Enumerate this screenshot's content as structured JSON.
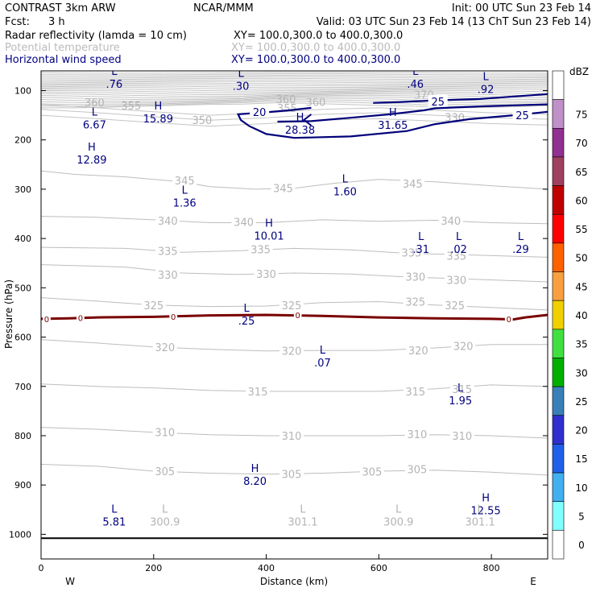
{
  "header": {
    "line1_left": "CONTRAST   3km ARW",
    "line1_mid": "NCAR/MMM",
    "line1_right": "Init: 00 UTC Sun 23 Feb 14",
    "fcst_label": "Fcst:",
    "fcst_value": "3 h",
    "valid": "Valid: 03 UTC Sun 23 Feb 14 (13 ChT Sun 23 Feb 14)",
    "fields": [
      {
        "label": "Radar reflectivity (lamda = 10 cm)",
        "xy": "XY= 100.0,300.0 to 400.0,300.0",
        "color": "#000000"
      },
      {
        "label": "Potential temperature",
        "xy": "XY= 100.0,300.0 to 400.0,300.0",
        "color": "#bbbbbb"
      },
      {
        "label": "Horizontal wind speed",
        "xy": "XY= 100.0,300.0 to 400.0,300.0",
        "color": "#000080"
      }
    ]
  },
  "chart_data": {
    "type": "contour",
    "xlabel": "Distance (km)",
    "ylabel": "Pressure (hPa)",
    "xlim": [
      0,
      900
    ],
    "ylim": [
      1050,
      60
    ],
    "x_ticks": [
      0,
      200,
      400,
      600,
      800
    ],
    "y_ticks": [
      100,
      200,
      300,
      400,
      500,
      600,
      700,
      800,
      900,
      1000
    ],
    "x_end_labels": {
      "left": "W",
      "right": "E"
    },
    "colorbar": {
      "unit": "dBZ",
      "levels": [
        0,
        5,
        10,
        15,
        20,
        25,
        30,
        35,
        40,
        45,
        50,
        55,
        60,
        65,
        70,
        75
      ],
      "colors": [
        "#ffffff",
        "#80ffff",
        "#40b0f0",
        "#2060e8",
        "#3030d0",
        "#3a80b8",
        "#00b000",
        "#40e040",
        "#f0d000",
        "#f8a040",
        "#ff6000",
        "#ff0000",
        "#c00000",
        "#a04060",
        "#903090",
        "#c090c8",
        "#ffffff"
      ]
    },
    "theta_contours": [
      {
        "value": 345,
        "label": "345",
        "points": [
          [
            0,
            263
          ],
          [
            60,
            270
          ],
          [
            150,
            275
          ],
          [
            250,
            285
          ],
          [
            300,
            295
          ],
          [
            380,
            300
          ],
          [
            450,
            298
          ],
          [
            520,
            288
          ],
          [
            600,
            280
          ],
          [
            700,
            285
          ],
          [
            800,
            293
          ],
          [
            900,
            300
          ]
        ],
        "label_positions": [
          [
            255,
            282
          ],
          [
            430,
            298
          ],
          [
            660,
            289
          ]
        ]
      },
      {
        "value": 340,
        "label": "340",
        "points": [
          [
            0,
            355
          ],
          [
            100,
            357
          ],
          [
            200,
            362
          ],
          [
            300,
            368
          ],
          [
            400,
            368
          ],
          [
            500,
            362
          ],
          [
            600,
            365
          ],
          [
            700,
            363
          ],
          [
            800,
            368
          ],
          [
            900,
            370
          ]
        ],
        "label_positions": [
          [
            225,
            364
          ],
          [
            360,
            366
          ],
          [
            728,
            364
          ]
        ]
      },
      {
        "value": 335,
        "label": "335",
        "points": [
          [
            0,
            418
          ],
          [
            150,
            420
          ],
          [
            250,
            428
          ],
          [
            350,
            425
          ],
          [
            450,
            420
          ],
          [
            550,
            423
          ],
          [
            650,
            430
          ],
          [
            750,
            433
          ],
          [
            900,
            438
          ]
        ],
        "label_positions": [
          [
            225,
            425
          ],
          [
            390,
            422
          ],
          [
            658,
            428
          ],
          [
            738,
            435
          ]
        ]
      },
      {
        "value": 330,
        "label": "330",
        "points": [
          [
            0,
            453
          ],
          [
            150,
            458
          ],
          [
            250,
            470
          ],
          [
            350,
            473
          ],
          [
            450,
            470
          ],
          [
            550,
            472
          ],
          [
            650,
            478
          ],
          [
            750,
            482
          ],
          [
            900,
            488
          ]
        ],
        "label_positions": [
          [
            225,
            473
          ],
          [
            400,
            472
          ],
          [
            665,
            477
          ],
          [
            738,
            484
          ]
        ]
      },
      {
        "value": 325,
        "label": "325",
        "points": [
          [
            0,
            520
          ],
          [
            100,
            527
          ],
          [
            200,
            535
          ],
          [
            300,
            538
          ],
          [
            400,
            537
          ],
          [
            500,
            530
          ],
          [
            600,
            528
          ],
          [
            700,
            535
          ],
          [
            800,
            540
          ],
          [
            900,
            545
          ]
        ],
        "label_positions": [
          [
            200,
            535
          ],
          [
            445,
            535
          ],
          [
            665,
            528
          ],
          [
            735,
            535
          ]
        ]
      },
      {
        "value": 320,
        "label": "320",
        "points": [
          [
            0,
            605
          ],
          [
            100,
            612
          ],
          [
            200,
            620
          ],
          [
            300,
            625
          ],
          [
            400,
            628
          ],
          [
            500,
            627
          ],
          [
            600,
            627
          ],
          [
            700,
            622
          ],
          [
            800,
            615
          ],
          [
            900,
            615
          ]
        ],
        "label_positions": [
          [
            220,
            620
          ],
          [
            445,
            628
          ],
          [
            670,
            627
          ],
          [
            750,
            618
          ]
        ]
      },
      {
        "value": 315,
        "label": "315",
        "points": [
          [
            0,
            695
          ],
          [
            100,
            700
          ],
          [
            200,
            703
          ],
          [
            300,
            708
          ],
          [
            400,
            710
          ],
          [
            500,
            710
          ],
          [
            600,
            710
          ],
          [
            700,
            705
          ],
          [
            800,
            697
          ],
          [
            900,
            700
          ]
        ],
        "label_positions": [
          [
            385,
            710
          ],
          [
            665,
            710
          ],
          [
            748,
            705
          ]
        ]
      },
      {
        "value": 310,
        "label": "310",
        "points": [
          [
            0,
            783
          ],
          [
            100,
            787
          ],
          [
            200,
            793
          ],
          [
            300,
            798
          ],
          [
            400,
            800
          ],
          [
            500,
            800
          ],
          [
            600,
            800
          ],
          [
            700,
            798
          ],
          [
            800,
            800
          ],
          [
            900,
            805
          ]
        ],
        "label_positions": [
          [
            220,
            793
          ],
          [
            445,
            800
          ],
          [
            668,
            797
          ],
          [
            748,
            800
          ]
        ]
      },
      {
        "value": 305,
        "label": "305",
        "points": [
          [
            0,
            858
          ],
          [
            100,
            862
          ],
          [
            200,
            872
          ],
          [
            300,
            876
          ],
          [
            400,
            878
          ],
          [
            500,
            876
          ],
          [
            600,
            872
          ],
          [
            700,
            870
          ],
          [
            800,
            874
          ],
          [
            900,
            880
          ]
        ],
        "label_positions": [
          [
            220,
            872
          ],
          [
            445,
            878
          ],
          [
            588,
            873
          ],
          [
            668,
            868
          ]
        ]
      }
    ],
    "theta_labels_crowded": [
      {
        "text": "360",
        "x": 95,
        "p": 124
      },
      {
        "text": "355",
        "x": 160,
        "p": 130
      },
      {
        "text": "350",
        "x": 286,
        "p": 160
      },
      {
        "text": "355",
        "x": 437,
        "p": 135
      },
      {
        "text": "360",
        "x": 435,
        "p": 117
      },
      {
        "text": "360",
        "x": 488,
        "p": 123
      },
      {
        "text": "370",
        "x": 680,
        "p": 108
      },
      {
        "text": "330",
        "x": 735,
        "p": 154
      }
    ],
    "zero_dbz_contour": {
      "label": "0",
      "points": [
        [
          0,
          563
        ],
        [
          50,
          562
        ],
        [
          100,
          560
        ],
        [
          200,
          559
        ],
        [
          300,
          556
        ],
        [
          400,
          555
        ],
        [
          500,
          557
        ],
        [
          600,
          560
        ],
        [
          700,
          562
        ],
        [
          800,
          563
        ],
        [
          840,
          564
        ],
        [
          860,
          560
        ],
        [
          900,
          555
        ]
      ],
      "label_positions": [
        [
          10,
          563
        ],
        [
          70,
          561
        ],
        [
          235,
          558
        ],
        [
          456,
          555
        ],
        [
          831,
          563
        ]
      ]
    },
    "wind_contours": [
      {
        "value": 20,
        "label": "20",
        "points": [
          [
            480,
            135
          ],
          [
            440,
            140
          ],
          [
            400,
            144
          ],
          [
            350,
            148
          ],
          [
            355,
            160
          ],
          [
            370,
            172
          ],
          [
            400,
            188
          ],
          [
            450,
            196
          ],
          [
            550,
            193
          ],
          [
            650,
            182
          ],
          [
            700,
            168
          ],
          [
            760,
            158
          ],
          [
            840,
            150
          ],
          [
            900,
            143
          ]
        ],
        "label_positions": [
          [
            388,
            143
          ]
        ]
      },
      {
        "value": 25,
        "label": "25",
        "points": [
          [
            590,
            125
          ],
          [
            640,
            123
          ],
          [
            700,
            120
          ],
          [
            780,
            117
          ],
          [
            840,
            112
          ],
          [
            900,
            107
          ]
        ],
        "label_positions": [
          [
            705,
            122
          ]
        ]
      },
      {
        "value": 25,
        "label": "25",
        "points": [
          [
            420,
            163
          ],
          [
            480,
            162
          ],
          [
            550,
            155
          ],
          [
            620,
            148
          ],
          [
            680,
            140
          ],
          [
            700,
            136
          ],
          [
            720,
            135
          ],
          [
            780,
            132
          ],
          [
            840,
            130
          ],
          [
            900,
            128
          ]
        ],
        "label_positions": [
          [
            855,
            150
          ]
        ]
      }
    ],
    "extrema": [
      {
        "type": "L",
        "value": ".76",
        "x": 130,
        "p": 75
      },
      {
        "type": "L",
        "value": ".30",
        "x": 355,
        "p": 79
      },
      {
        "type": "L",
        "value": ".46",
        "x": 665,
        "p": 75
      },
      {
        "type": "L",
        "value": ".92",
        "x": 790,
        "p": 85
      },
      {
        "type": "H",
        "value": "15.89",
        "x": 208,
        "p": 145
      },
      {
        "type": "L",
        "value": "6.67",
        "x": 95,
        "p": 157
      },
      {
        "type": "H",
        "value": "28.38",
        "x": 460,
        "p": 168
      },
      {
        "type": "H",
        "value": "31.65",
        "x": 625,
        "p": 158
      },
      {
        "type": "H",
        "value": "12.89",
        "x": 90,
        "p": 228
      },
      {
        "type": "L",
        "value": "1.36",
        "x": 255,
        "p": 316
      },
      {
        "type": "L",
        "value": "1.60",
        "x": 540,
        "p": 293
      },
      {
        "type": "H",
        "value": "10.01",
        "x": 405,
        "p": 383
      },
      {
        "type": "L",
        "value": ".31",
        "x": 675,
        "p": 410
      },
      {
        "type": "L",
        "value": ".02",
        "x": 742,
        "p": 410
      },
      {
        "type": "L",
        "value": ".29",
        "x": 852,
        "p": 410
      },
      {
        "type": "L",
        "value": ".25",
        "x": 365,
        "p": 555
      },
      {
        "type": "L",
        "value": ".07",
        "x": 500,
        "p": 640
      },
      {
        "type": "L",
        "value": "1.95",
        "x": 745,
        "p": 717
      },
      {
        "type": "H",
        "value": "8.20",
        "x": 380,
        "p": 880
      },
      {
        "type": "L",
        "value": "5.81",
        "x": 130,
        "p": 963
      },
      {
        "type": "H",
        "value": "12.55",
        "x": 790,
        "p": 940
      }
    ],
    "theta_minima": [
      {
        "type": "L",
        "value": "300.9",
        "x": 220,
        "p": 963
      },
      {
        "type": "L",
        "value": "301.1",
        "x": 465,
        "p": 963
      },
      {
        "type": "L",
        "value": "300.9",
        "x": 635,
        "p": 963
      },
      {
        "type": "L",
        "value": "301.1",
        "x": 780,
        "p": 963
      }
    ],
    "surface_line_p": 1008
  }
}
